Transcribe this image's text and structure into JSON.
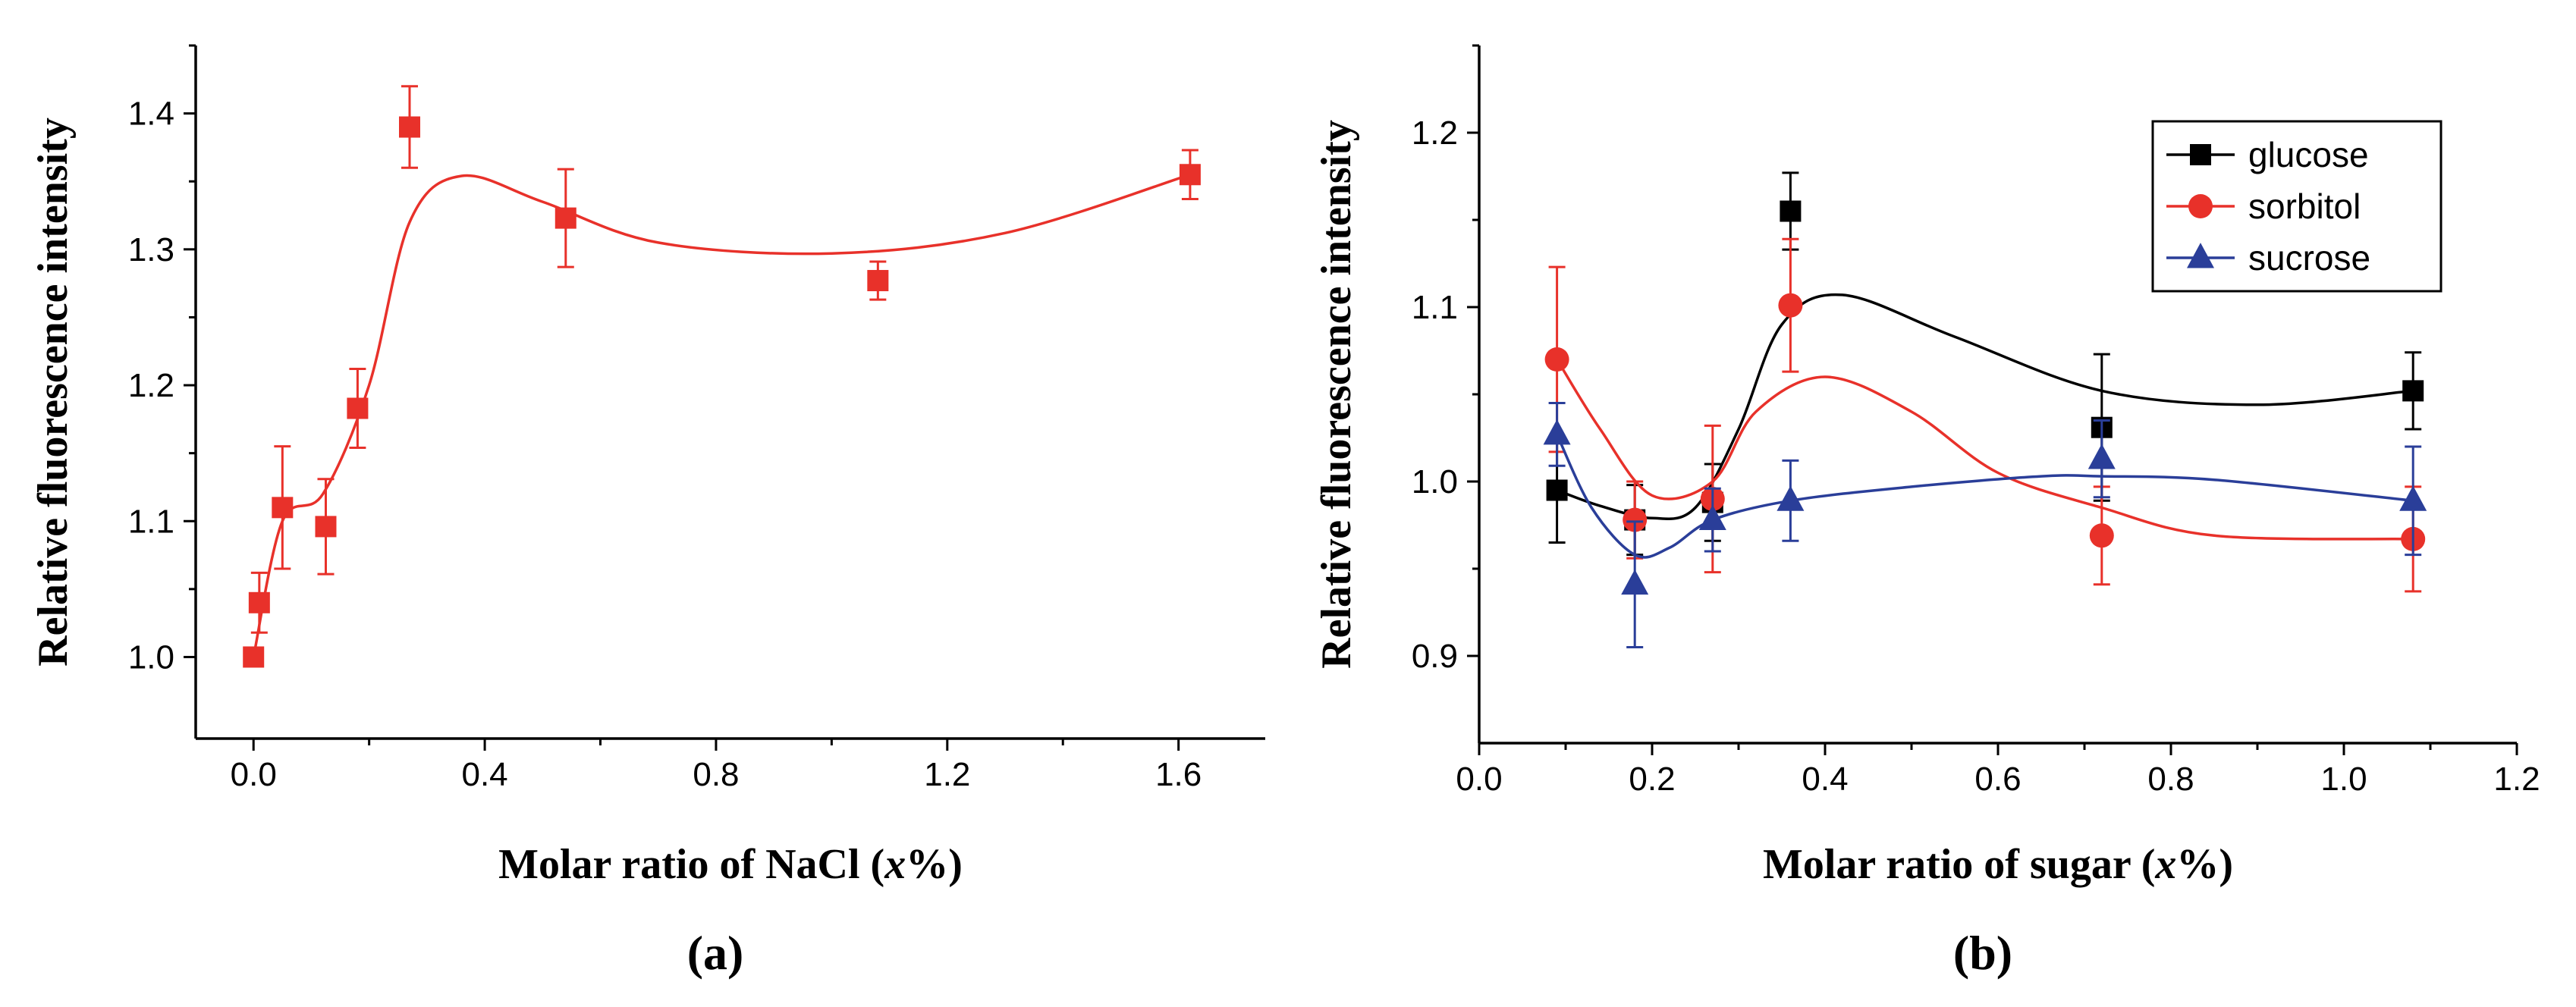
{
  "chart_data": [
    {
      "type": "scatter",
      "panel_label": "(a)",
      "xlabel": "Molar ratio of NaCl (x%)",
      "xlabel_parts": [
        "Molar ratio of NaCl (",
        "x",
        "%)"
      ],
      "ylabel": "Relative fluorescence intensity",
      "xlim": [
        -0.1,
        1.75
      ],
      "ylim": [
        0.94,
        1.45
      ],
      "xticks": [
        0.0,
        0.4,
        0.8,
        1.2,
        1.6
      ],
      "xtick_labels": [
        "0.0",
        "0.4",
        "0.8",
        "1.2",
        "1.6"
      ],
      "yticks": [
        1.0,
        1.1,
        1.2,
        1.3,
        1.4
      ],
      "ytick_labels": [
        "1.0",
        "1.1",
        "1.2",
        "1.3",
        "1.4"
      ],
      "series": [
        {
          "name": "NaCl",
          "color": "#e8312a",
          "marker": "square",
          "x": [
            0.0,
            0.01,
            0.05,
            0.125,
            0.18,
            0.27,
            0.54,
            1.08,
            1.62
          ],
          "y": [
            1.0,
            1.04,
            1.11,
            1.096,
            1.183,
            1.39,
            1.323,
            1.277,
            1.355
          ],
          "err": [
            0.0,
            0.022,
            0.045,
            0.035,
            0.029,
            0.03,
            0.036,
            0.014,
            0.018
          ],
          "fit_x": [
            0.0,
            0.05,
            0.12,
            0.2,
            0.27,
            0.36,
            0.5,
            0.7,
            1.0,
            1.3,
            1.62
          ],
          "fit_y": [
            1.0,
            1.1,
            1.12,
            1.2,
            1.32,
            1.354,
            1.335,
            1.305,
            1.297,
            1.312,
            1.355
          ]
        }
      ]
    },
    {
      "type": "scatter",
      "panel_label": "(b)",
      "xlabel": "Molar ratio of sugar (x%)",
      "xlabel_parts": [
        "Molar ratio of sugar (",
        "x",
        "%)"
      ],
      "ylabel": "Relative fluorescence intensity",
      "xlim": [
        0.0,
        1.2
      ],
      "ylim": [
        0.85,
        1.25
      ],
      "xticks": [
        0.0,
        0.2,
        0.4,
        0.6,
        0.8,
        1.0,
        1.2
      ],
      "xtick_labels": [
        "0.0",
        "0.2",
        "0.4",
        "0.6",
        "0.8",
        "1.0",
        "1.2"
      ],
      "yticks": [
        0.9,
        1.0,
        1.1,
        1.2
      ],
      "ytick_labels": [
        "0.9",
        "1.0",
        "1.1",
        "1.2"
      ],
      "legend_position": "top-right",
      "series": [
        {
          "name": "glucose",
          "color": "#000000",
          "marker": "square",
          "x": [
            0.09,
            0.18,
            0.27,
            0.36,
            0.72,
            1.08
          ],
          "y": [
            0.995,
            0.978,
            0.988,
            1.155,
            1.031,
            1.052
          ],
          "err": [
            0.03,
            0.02,
            0.022,
            0.022,
            0.042,
            0.022
          ],
          "fit_x": [
            0.09,
            0.14,
            0.2,
            0.25,
            0.3,
            0.35,
            0.42,
            0.55,
            0.72,
            0.9,
            1.08
          ],
          "fit_y": [
            0.995,
            0.986,
            0.979,
            0.985,
            1.03,
            1.09,
            1.107,
            1.083,
            1.052,
            1.044,
            1.052
          ]
        },
        {
          "name": "sorbitol",
          "color": "#e8312a",
          "marker": "circle",
          "x": [
            0.09,
            0.18,
            0.27,
            0.36,
            0.72,
            1.08
          ],
          "y": [
            1.07,
            0.978,
            0.99,
            1.101,
            0.969,
            0.967
          ],
          "err": [
            0.053,
            0.022,
            0.042,
            0.038,
            0.028,
            0.03
          ],
          "fit_x": [
            0.09,
            0.14,
            0.2,
            0.27,
            0.32,
            0.4,
            0.5,
            0.6,
            0.72,
            0.85,
            1.08
          ],
          "fit_y": [
            1.07,
            1.03,
            0.992,
            1.0,
            1.04,
            1.06,
            1.04,
            1.005,
            0.985,
            0.969,
            0.967
          ]
        },
        {
          "name": "sucrose",
          "color": "#2a3e99",
          "marker": "triangle",
          "x": [
            0.09,
            0.18,
            0.27,
            0.36,
            0.72,
            1.08
          ],
          "y": [
            1.027,
            0.941,
            0.978,
            0.989,
            1.013,
            0.989
          ],
          "err": [
            0.018,
            0.036,
            0.018,
            0.023,
            0.022,
            0.031
          ],
          "fit_x": [
            0.09,
            0.13,
            0.18,
            0.22,
            0.27,
            0.36,
            0.5,
            0.65,
            0.72,
            0.85,
            1.08
          ],
          "fit_y": [
            1.027,
            0.985,
            0.958,
            0.962,
            0.978,
            0.989,
            0.997,
            1.003,
            1.003,
            1.001,
            0.989
          ]
        }
      ]
    }
  ]
}
